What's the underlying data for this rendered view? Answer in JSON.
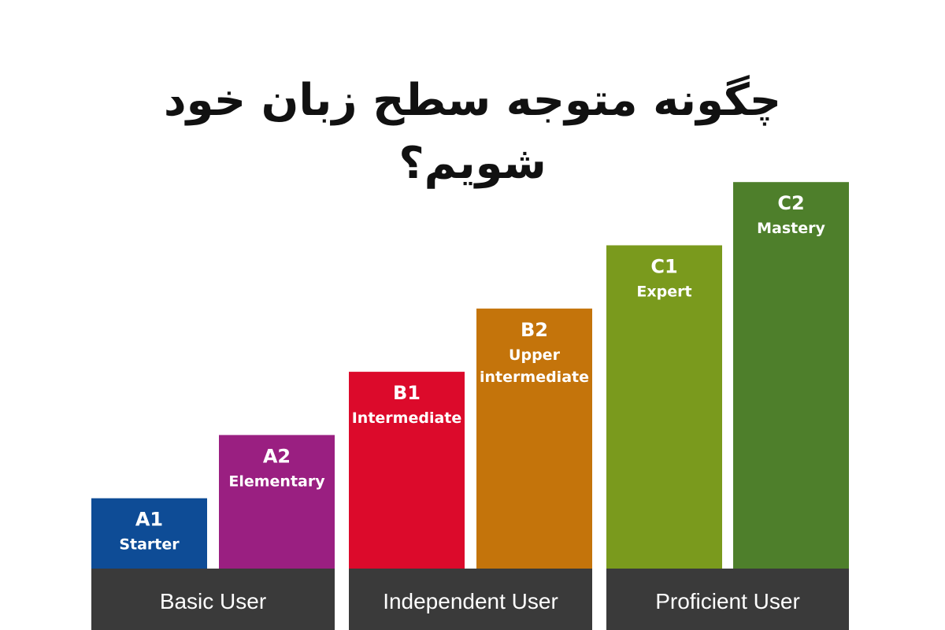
{
  "title": "چگونه متوجه سطح زبان خود شویم؟",
  "chart_data": {
    "type": "bar",
    "title": "چگونه متوجه سطح زبان خود شویم؟",
    "categories": [
      "A1",
      "A2",
      "B1",
      "B2",
      "C1",
      "C2"
    ],
    "level_names": [
      [
        "Starter"
      ],
      [
        "Elementary"
      ],
      [
        "Intermediate"
      ],
      [
        "Upper",
        "intermediate"
      ],
      [
        "Expert"
      ],
      [
        "Mastery"
      ]
    ],
    "values": [
      1,
      2,
      3,
      4,
      5,
      6
    ],
    "colors": [
      "#0e4c96",
      "#9a1f81",
      "#dc0a2b",
      "#c4740b",
      "#7a9a1d",
      "#4e7f2b"
    ],
    "groups": [
      {
        "label": "Basic User",
        "categories": [
          "A1",
          "A2"
        ]
      },
      {
        "label": "Independent User",
        "categories": [
          "B1",
          "B2"
        ]
      },
      {
        "label": "Proficient User",
        "categories": [
          "C1",
          "C2"
        ]
      }
    ],
    "group_color": "#3a3a3a",
    "ylim": [
      0,
      6
    ],
    "grid": false,
    "legend": "none"
  }
}
